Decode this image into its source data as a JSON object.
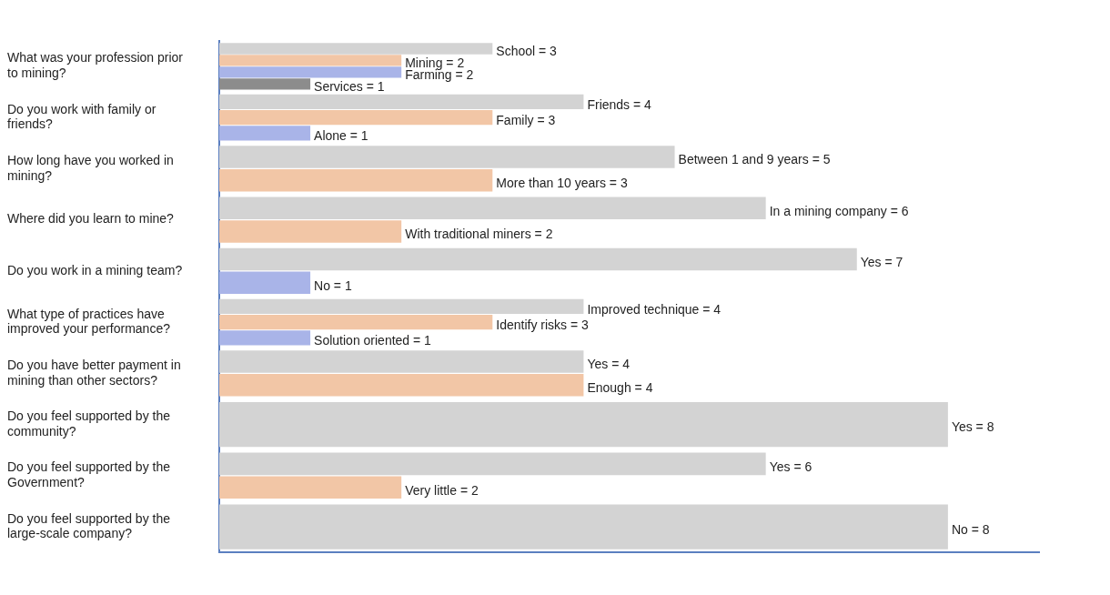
{
  "chart_data": {
    "type": "bar",
    "orientation": "horizontal",
    "categories": [
      "What was your profession prior to mining?",
      "Do you work with family or friends?",
      "How long have you worked in mining?",
      "Where did you learn to mine?",
      "Do you work in a mining team?",
      "What type of practices have improved your performance?",
      "Do you have better payment in mining than other sectors?",
      "Do you feel supported by the community?",
      "Do you feel supported by the Government?",
      "Do you feel supported by the large-scale company?"
    ],
    "series": [
      {
        "color": "#d3d3d3",
        "values": [
          3,
          4,
          5,
          6,
          7,
          4,
          4,
          8,
          6,
          8
        ],
        "value_labels": [
          "School = 3",
          "Friends = 4",
          "Between 1 and 9 years = 5",
          "In a mining company = 6",
          "Yes = 7",
          "Improved technique = 4",
          "Yes = 4",
          "Yes = 8",
          "Yes = 6",
          "No = 8"
        ]
      },
      {
        "color": "#f2c6a6",
        "values": [
          2,
          3,
          3,
          2,
          null,
          3,
          4,
          null,
          2,
          null
        ],
        "value_labels": [
          "Mining = 2",
          "Family = 3",
          "More than 10 years = 3",
          "With traditional miners = 2",
          null,
          "Identify risks = 3",
          "Enough = 4",
          null,
          "Very little = 2",
          null
        ]
      },
      {
        "color": "#a9b4e8",
        "values": [
          2,
          1,
          null,
          null,
          1,
          1,
          null,
          null,
          null,
          null
        ],
        "value_labels": [
          "Farming = 2",
          "Alone = 1",
          null,
          null,
          "No = 1",
          "Solution oriented = 1",
          null,
          null,
          null,
          null
        ]
      },
      {
        "color": "#8c8c8c",
        "values": [
          1,
          null,
          null,
          null,
          null,
          null,
          null,
          null,
          null,
          null
        ],
        "value_labels": [
          "Services = 1",
          null,
          null,
          null,
          null,
          null,
          null,
          null,
          null,
          null
        ]
      }
    ],
    "xlim": [
      0,
      9
    ],
    "tick_labels": "y",
    "grid": false,
    "legend": false
  }
}
